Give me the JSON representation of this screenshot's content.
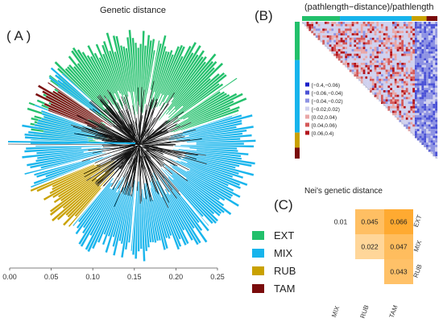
{
  "colors": {
    "EXT": "#22c06b",
    "MIX": "#17b4ec",
    "RUB": "#c9a100",
    "TAM": "#7a0c0c"
  },
  "panel_a": {
    "letter": "( A )",
    "title": "Genetic distance",
    "axis_ticks": [
      "0.00",
      "0.05",
      "0.10",
      "0.15",
      "0.20",
      "0.25"
    ],
    "axis_range": [
      0.0,
      0.25
    ],
    "sectors": [
      {
        "group": "EXT",
        "start_deg": -88,
        "end_deg": 72
      },
      {
        "group": "MIX",
        "start_deg": 72,
        "end_deg": 220
      },
      {
        "group": "RUB",
        "start_deg": 220,
        "end_deg": 248
      },
      {
        "group": "MIX",
        "start_deg": 248,
        "end_deg": 290
      },
      {
        "group": "TAM",
        "start_deg": 290,
        "end_deg": 305
      },
      {
        "group": "MIX",
        "start_deg": 305,
        "end_deg": 312
      }
    ]
  },
  "panel_b": {
    "letter": "(B)",
    "title": "(pathlength−distance)/pathlength",
    "group_bar": [
      {
        "group": "EXT",
        "fraction": 0.28
      },
      {
        "group": "MIX",
        "fraction": 0.53
      },
      {
        "group": "RUB",
        "fraction": 0.11
      },
      {
        "group": "TAM",
        "fraction": 0.08
      }
    ],
    "legend": [
      {
        "label": "[−0.4,−0.06)",
        "color": "#1a1fc8"
      },
      {
        "label": "[−0.06,−0.04)",
        "color": "#4b52d6"
      },
      {
        "label": "[−0.04,−0.02)",
        "color": "#8d92e3"
      },
      {
        "label": "[−0.02,0.02)",
        "color": "#cfd0ee"
      },
      {
        "label": "[0.02,0.04)",
        "color": "#e9a6a6"
      },
      {
        "label": "[0.04,0.06)",
        "color": "#d45858"
      },
      {
        "label": "[0.06,0.4)",
        "color": "#b3141c"
      }
    ]
  },
  "legend_groups": [
    "EXT",
    "MIX",
    "RUB",
    "TAM"
  ],
  "panel_c": {
    "letter": "(C)",
    "title": "Nei's genetic distance",
    "col_labels": [
      "MIX",
      "RUB",
      "TAM"
    ],
    "row_labels": [
      "EXT",
      "MIX",
      "RUB"
    ],
    "cells": [
      {
        "row": 0,
        "col": 0,
        "value": "0.01"
      },
      {
        "row": 0,
        "col": 1,
        "value": "0.045"
      },
      {
        "row": 0,
        "col": 2,
        "value": "0.066"
      },
      {
        "row": 1,
        "col": 1,
        "value": "0.022"
      },
      {
        "row": 1,
        "col": 2,
        "value": "0.047"
      },
      {
        "row": 2,
        "col": 2,
        "value": "0.043"
      }
    ]
  }
}
